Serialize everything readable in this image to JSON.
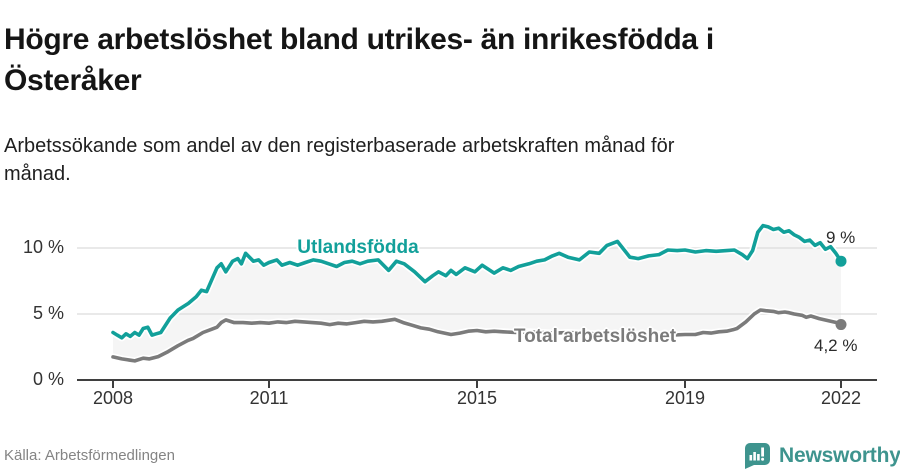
{
  "header": {
    "title": "Högre arbetslöshet bland utrikes- än inrikesfödda i Österåker",
    "subtitle": "Arbetssökande som andel av den registerbaserade arbetskraften månad för månad."
  },
  "footer": {
    "source": "Källa: Arbetsförmedlingen",
    "brand": "Newsworthy"
  },
  "colors": {
    "accent_teal": "#12a09a",
    "line_gray": "#7b7b7b",
    "brand_teal": "#3e948e",
    "area_fill": "#f5f5f5",
    "grid": "#dcdcdc",
    "axis": "#3f3f3f",
    "label_text": "#2b2b2b"
  },
  "chart_data": {
    "type": "line",
    "title": "Högre arbetslöshet bland utrikes- än inrikesfödda i Österåker",
    "subtitle": "Arbetssökande som andel av den registerbaserade arbetskraften månad för månad.",
    "xlim": [
      2008,
      2022
    ],
    "ylim": [
      0,
      12.5
    ],
    "grid": "horizontal",
    "legend": "inline-labels",
    "x_ticks": [
      2008,
      2011,
      2015,
      2019,
      2022
    ],
    "x_tick_labels": [
      "2008",
      "2011",
      "2015",
      "2019",
      "2022"
    ],
    "y_ticks": [
      0,
      5,
      10
    ],
    "y_tick_labels": [
      "0 %",
      "5 %",
      "10 %"
    ],
    "series": [
      {
        "name": "Utlandsfödda",
        "color": "#12a09a",
        "end_label": "9 %",
        "end_value": 9.0,
        "points": [
          [
            2008,
            3.6
          ],
          [
            2008.08,
            3.4
          ],
          [
            2008.17,
            3.2
          ],
          [
            2008.25,
            3.5
          ],
          [
            2008.33,
            3.3
          ],
          [
            2008.42,
            3.6
          ],
          [
            2008.5,
            3.4
          ],
          [
            2008.58,
            3.9
          ],
          [
            2008.67,
            4
          ],
          [
            2008.75,
            3.4
          ],
          [
            2008.83,
            3.5
          ],
          [
            2008.92,
            3.6
          ],
          [
            2009.1,
            4.7
          ],
          [
            2009.25,
            5.3
          ],
          [
            2009.45,
            5.8
          ],
          [
            2009.6,
            6.3
          ],
          [
            2009.7,
            6.8
          ],
          [
            2009.8,
            6.7
          ],
          [
            2009.9,
            7.6
          ],
          [
            2010,
            8.5
          ],
          [
            2010.08,
            8.8
          ],
          [
            2010.17,
            8.2
          ],
          [
            2010.3,
            9
          ],
          [
            2010.4,
            9.2
          ],
          [
            2010.47,
            8.8
          ],
          [
            2010.55,
            9.6
          ],
          [
            2010.7,
            9
          ],
          [
            2010.8,
            9.1
          ],
          [
            2010.9,
            8.7
          ],
          [
            2011,
            8.9
          ],
          [
            2011.15,
            9.1
          ],
          [
            2011.25,
            8.7
          ],
          [
            2011.4,
            8.9
          ],
          [
            2011.55,
            8.7
          ],
          [
            2011.7,
            8.9
          ],
          [
            2011.85,
            9.1
          ],
          [
            2012,
            9
          ],
          [
            2012.15,
            8.8
          ],
          [
            2012.3,
            8.6
          ],
          [
            2012.45,
            8.9
          ],
          [
            2012.6,
            9
          ],
          [
            2012.75,
            8.8
          ],
          [
            2012.9,
            9
          ],
          [
            2013.1,
            9.1
          ],
          [
            2013.3,
            8.3
          ],
          [
            2013.45,
            9
          ],
          [
            2013.6,
            8.8
          ],
          [
            2013.8,
            8.2
          ],
          [
            2014,
            7.45
          ],
          [
            2014.15,
            7.9
          ],
          [
            2014.26,
            8.2
          ],
          [
            2014.4,
            7.9
          ],
          [
            2014.5,
            8.3
          ],
          [
            2014.6,
            8
          ],
          [
            2014.77,
            8.5
          ],
          [
            2014.96,
            8.2
          ],
          [
            2015.1,
            8.7
          ],
          [
            2015.33,
            8.1
          ],
          [
            2015.5,
            8.5
          ],
          [
            2015.65,
            8.3
          ],
          [
            2015.8,
            8.6
          ],
          [
            2016,
            8.8
          ],
          [
            2016.15,
            9
          ],
          [
            2016.3,
            9.1
          ],
          [
            2016.45,
            9.4
          ],
          [
            2016.58,
            9.6
          ],
          [
            2016.75,
            9.3
          ],
          [
            2016.97,
            9.1
          ],
          [
            2017.16,
            9.7
          ],
          [
            2017.35,
            9.6
          ],
          [
            2017.5,
            10.2
          ],
          [
            2017.7,
            10.5
          ],
          [
            2017.94,
            9.3
          ],
          [
            2018.1,
            9.2
          ],
          [
            2018.3,
            9.4
          ],
          [
            2018.5,
            9.5
          ],
          [
            2018.67,
            9.85
          ],
          [
            2018.85,
            9.8
          ],
          [
            2019,
            9.85
          ],
          [
            2019.2,
            9.7
          ],
          [
            2019.4,
            9.8
          ],
          [
            2019.6,
            9.75
          ],
          [
            2019.8,
            9.8
          ],
          [
            2019.95,
            9.85
          ],
          [
            2020.1,
            9.5
          ],
          [
            2020.2,
            9.2
          ],
          [
            2020.3,
            9.8
          ],
          [
            2020.4,
            11.2
          ],
          [
            2020.5,
            11.7
          ],
          [
            2020.6,
            11.6
          ],
          [
            2020.7,
            11.4
          ],
          [
            2020.8,
            11.5
          ],
          [
            2020.9,
            11.2
          ],
          [
            2021,
            11.3
          ],
          [
            2021.1,
            11
          ],
          [
            2021.2,
            10.8
          ],
          [
            2021.3,
            10.5
          ],
          [
            2021.4,
            10.6
          ],
          [
            2021.5,
            10.2
          ],
          [
            2021.6,
            10.4
          ],
          [
            2021.7,
            9.9
          ],
          [
            2021.8,
            10.1
          ],
          [
            2021.9,
            9.6
          ],
          [
            2021.95,
            9.3
          ],
          [
            2022,
            9
          ]
        ]
      },
      {
        "name": "Total arbetslöshet",
        "color": "#7b7b7b",
        "end_label": "4,2 %",
        "end_value": 4.2,
        "points": [
          [
            2008,
            1.75
          ],
          [
            2008.17,
            1.6
          ],
          [
            2008.33,
            1.5
          ],
          [
            2008.42,
            1.45
          ],
          [
            2008.58,
            1.65
          ],
          [
            2008.7,
            1.6
          ],
          [
            2008.87,
            1.77
          ],
          [
            2009.06,
            2.15
          ],
          [
            2009.25,
            2.6
          ],
          [
            2009.44,
            3
          ],
          [
            2009.54,
            3.15
          ],
          [
            2009.73,
            3.6
          ],
          [
            2009.9,
            3.85
          ],
          [
            2010,
            4
          ],
          [
            2010.08,
            4.35
          ],
          [
            2010.17,
            4.55
          ],
          [
            2010.33,
            4.35
          ],
          [
            2010.5,
            4.35
          ],
          [
            2010.67,
            4.3
          ],
          [
            2010.83,
            4.35
          ],
          [
            2011,
            4.3
          ],
          [
            2011.17,
            4.4
          ],
          [
            2011.33,
            4.35
          ],
          [
            2011.5,
            4.45
          ],
          [
            2011.67,
            4.4
          ],
          [
            2011.83,
            4.35
          ],
          [
            2012,
            4.3
          ],
          [
            2012.17,
            4.2
          ],
          [
            2012.33,
            4.3
          ],
          [
            2012.5,
            4.25
          ],
          [
            2012.67,
            4.35
          ],
          [
            2012.83,
            4.45
          ],
          [
            2013,
            4.4
          ],
          [
            2013.17,
            4.45
          ],
          [
            2013.42,
            4.6
          ],
          [
            2013.58,
            4.35
          ],
          [
            2013.75,
            4.15
          ],
          [
            2013.92,
            3.95
          ],
          [
            2014.08,
            3.85
          ],
          [
            2014.25,
            3.65
          ],
          [
            2014.5,
            3.45
          ],
          [
            2014.67,
            3.55
          ],
          [
            2014.83,
            3.7
          ],
          [
            2015,
            3.75
          ],
          [
            2015.17,
            3.65
          ],
          [
            2015.33,
            3.7
          ],
          [
            2015.5,
            3.65
          ],
          [
            2015.75,
            3.6
          ],
          [
            2016,
            3.65
          ],
          [
            2016.25,
            3.6
          ],
          [
            2016.5,
            3.55
          ],
          [
            2016.75,
            3.6
          ],
          [
            2017,
            3.55
          ],
          [
            2017.25,
            3.5
          ],
          [
            2017.5,
            3.55
          ],
          [
            2017.75,
            3.5
          ],
          [
            2018,
            3.45
          ],
          [
            2018.25,
            3.5
          ],
          [
            2018.5,
            3.45
          ],
          [
            2018.75,
            3.4
          ],
          [
            2019,
            3.45
          ],
          [
            2019.2,
            3.45
          ],
          [
            2019.35,
            3.6
          ],
          [
            2019.5,
            3.55
          ],
          [
            2019.65,
            3.65
          ],
          [
            2019.8,
            3.7
          ],
          [
            2019.92,
            3.8
          ],
          [
            2020,
            3.9
          ],
          [
            2020.17,
            4.4
          ],
          [
            2020.33,
            5
          ],
          [
            2020.45,
            5.3
          ],
          [
            2020.55,
            5.25
          ],
          [
            2020.7,
            5.2
          ],
          [
            2020.8,
            5.1
          ],
          [
            2020.92,
            5.15
          ],
          [
            2021,
            5.1
          ],
          [
            2021.1,
            5
          ],
          [
            2021.25,
            4.9
          ],
          [
            2021.33,
            4.75
          ],
          [
            2021.42,
            4.85
          ],
          [
            2021.58,
            4.65
          ],
          [
            2021.75,
            4.5
          ],
          [
            2021.92,
            4.35
          ],
          [
            2022,
            4.2
          ]
        ]
      }
    ]
  }
}
